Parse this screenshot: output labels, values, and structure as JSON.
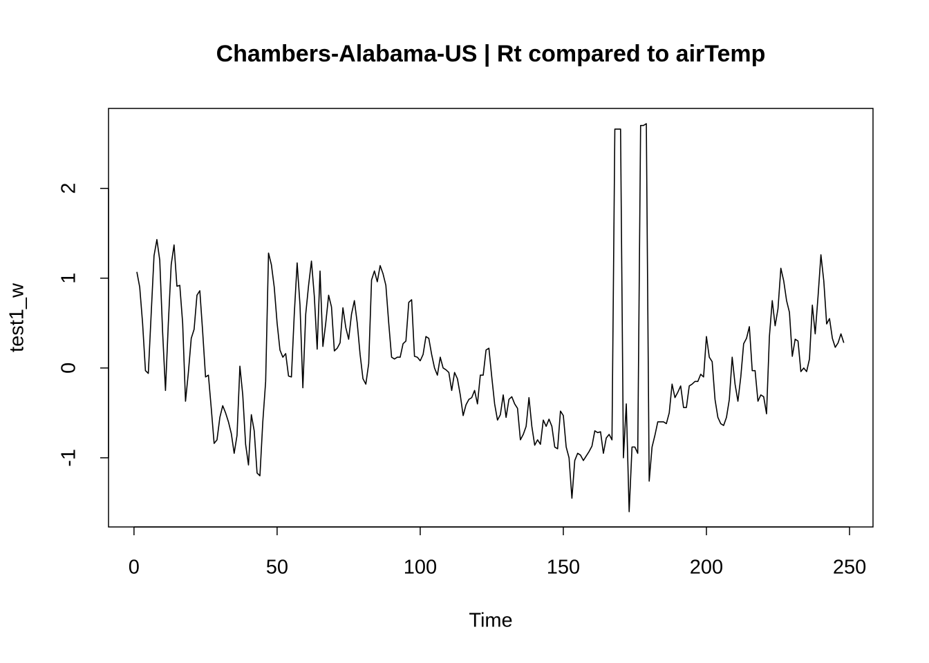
{
  "chart_data": {
    "type": "line",
    "title": "Chambers-Alabama-US | Rt compared to airTemp",
    "xlabel": "Time",
    "ylabel": "test1_w",
    "xlim": [
      -8.9,
      258.2
    ],
    "ylim": [
      -1.77,
      2.89
    ],
    "xticks": [
      0,
      50,
      100,
      150,
      200,
      250
    ],
    "yticks": [
      -1,
      0,
      1,
      2
    ],
    "color": "#000000",
    "x": [
      1,
      2,
      3,
      4,
      5,
      6,
      7,
      8,
      9,
      10,
      11,
      12,
      13,
      14,
      15,
      16,
      17,
      18,
      19,
      20,
      21,
      22,
      23,
      24,
      25,
      26,
      27,
      28,
      29,
      30,
      31,
      32,
      33,
      34,
      35,
      36,
      37,
      38,
      39,
      40,
      41,
      42,
      43,
      44,
      45,
      46,
      47,
      48,
      49,
      50,
      51,
      52,
      53,
      54,
      55,
      56,
      57,
      58,
      59,
      60,
      61,
      62,
      63,
      64,
      65,
      66,
      67,
      68,
      69,
      70,
      71,
      72,
      73,
      74,
      75,
      76,
      77,
      78,
      79,
      80,
      81,
      82,
      83,
      84,
      85,
      86,
      87,
      88,
      89,
      90,
      91,
      92,
      93,
      94,
      95,
      96,
      97,
      98,
      99,
      100,
      101,
      102,
      103,
      104,
      105,
      106,
      107,
      108,
      109,
      110,
      111,
      112,
      113,
      114,
      115,
      116,
      117,
      118,
      119,
      120,
      121,
      122,
      123,
      124,
      125,
      126,
      127,
      128,
      129,
      130,
      131,
      132,
      133,
      134,
      135,
      136,
      137,
      138,
      139,
      140,
      141,
      142,
      143,
      144,
      145,
      146,
      147,
      148,
      149,
      150,
      151,
      152,
      153,
      154,
      155,
      156,
      157,
      158,
      159,
      160,
      161,
      162,
      163,
      164,
      165,
      166,
      167,
      168,
      169,
      170,
      171,
      172,
      173,
      174,
      175,
      176,
      177,
      178,
      179,
      180,
      181,
      182,
      183,
      184,
      185,
      186,
      187,
      188,
      189,
      190,
      191,
      192,
      193,
      194,
      195,
      196,
      197,
      198,
      199,
      200,
      201,
      202,
      203,
      204,
      205,
      206,
      207,
      208,
      209,
      210,
      211,
      212,
      213,
      214,
      215,
      216,
      217,
      218,
      219,
      220,
      221,
      222,
      223,
      224,
      225,
      226,
      227,
      228,
      229,
      230,
      231,
      232,
      233,
      234,
      235,
      236,
      237,
      238,
      239,
      240,
      241,
      242,
      243,
      244,
      245,
      246,
      247,
      248
    ],
    "values": [
      1.07,
      0.9,
      0.5,
      -0.03,
      -0.06,
      0.6,
      1.25,
      1.43,
      1.2,
      0.4,
      -0.25,
      0.5,
      1.15,
      1.37,
      0.91,
      0.92,
      0.5,
      -0.37,
      -0.05,
      0.33,
      0.43,
      0.81,
      0.86,
      0.4,
      -0.1,
      -0.08,
      -0.45,
      -0.84,
      -0.8,
      -0.55,
      -0.42,
      -0.5,
      -0.6,
      -0.73,
      -0.95,
      -0.75,
      0.02,
      -0.3,
      -0.85,
      -1.08,
      -0.52,
      -0.7,
      -1.17,
      -1.2,
      -0.6,
      -0.15,
      1.28,
      1.15,
      0.9,
      0.5,
      0.2,
      0.12,
      0.16,
      -0.09,
      -0.1,
      0.6,
      1.17,
      0.7,
      -0.22,
      0.6,
      0.92,
      1.19,
      0.8,
      0.21,
      1.08,
      0.24,
      0.5,
      0.81,
      0.68,
      0.19,
      0.22,
      0.28,
      0.67,
      0.45,
      0.32,
      0.6,
      0.75,
      0.5,
      0.15,
      -0.12,
      -0.18,
      0.05,
      0.98,
      1.08,
      0.96,
      1.14,
      1.05,
      0.92,
      0.5,
      0.12,
      0.1,
      0.12,
      0.12,
      0.27,
      0.3,
      0.73,
      0.76,
      0.13,
      0.12,
      0.08,
      0.15,
      0.35,
      0.33,
      0.15,
      0.0,
      -0.08,
      0.12,
      0.0,
      -0.02,
      -0.05,
      -0.25,
      -0.05,
      -0.12,
      -0.3,
      -0.53,
      -0.41,
      -0.35,
      -0.33,
      -0.25,
      -0.4,
      -0.08,
      -0.08,
      0.2,
      0.22,
      -0.1,
      -0.4,
      -0.58,
      -0.52,
      -0.3,
      -0.55,
      -0.35,
      -0.32,
      -0.4,
      -0.45,
      -0.8,
      -0.74,
      -0.65,
      -0.33,
      -0.65,
      -0.86,
      -0.8,
      -0.85,
      -0.58,
      -0.65,
      -0.57,
      -0.65,
      -0.88,
      -0.9,
      -0.48,
      -0.53,
      -0.88,
      -1.0,
      -1.45,
      -1.03,
      -0.95,
      -0.97,
      -1.03,
      -0.98,
      -0.93,
      -0.87,
      -0.7,
      -0.72,
      -0.71,
      -0.95,
      -0.78,
      -0.74,
      -0.8,
      2.66,
      2.66,
      2.66,
      -1.0,
      -0.4,
      -1.6,
      -0.88,
      -0.88,
      -0.95,
      2.7,
      2.7,
      2.72,
      -1.26,
      -0.88,
      -0.75,
      -0.6,
      -0.6,
      -0.6,
      -0.62,
      -0.5,
      -0.18,
      -0.33,
      -0.27,
      -0.2,
      -0.44,
      -0.44,
      -0.2,
      -0.18,
      -0.15,
      -0.15,
      -0.07,
      -0.1,
      0.35,
      0.12,
      0.07,
      -0.35,
      -0.55,
      -0.62,
      -0.64,
      -0.55,
      -0.35,
      0.12,
      -0.18,
      -0.37,
      -0.1,
      0.27,
      0.33,
      0.46,
      -0.03,
      -0.03,
      -0.37,
      -0.3,
      -0.32,
      -0.51,
      0.35,
      0.75,
      0.47,
      0.66,
      1.11,
      0.97,
      0.75,
      0.62,
      0.13,
      0.32,
      0.3,
      -0.04,
      0.0,
      -0.04,
      0.1,
      0.7,
      0.38,
      0.8,
      1.26,
      0.97,
      0.49,
      0.55,
      0.33,
      0.23,
      0.28,
      0.38,
      0.28
    ]
  }
}
